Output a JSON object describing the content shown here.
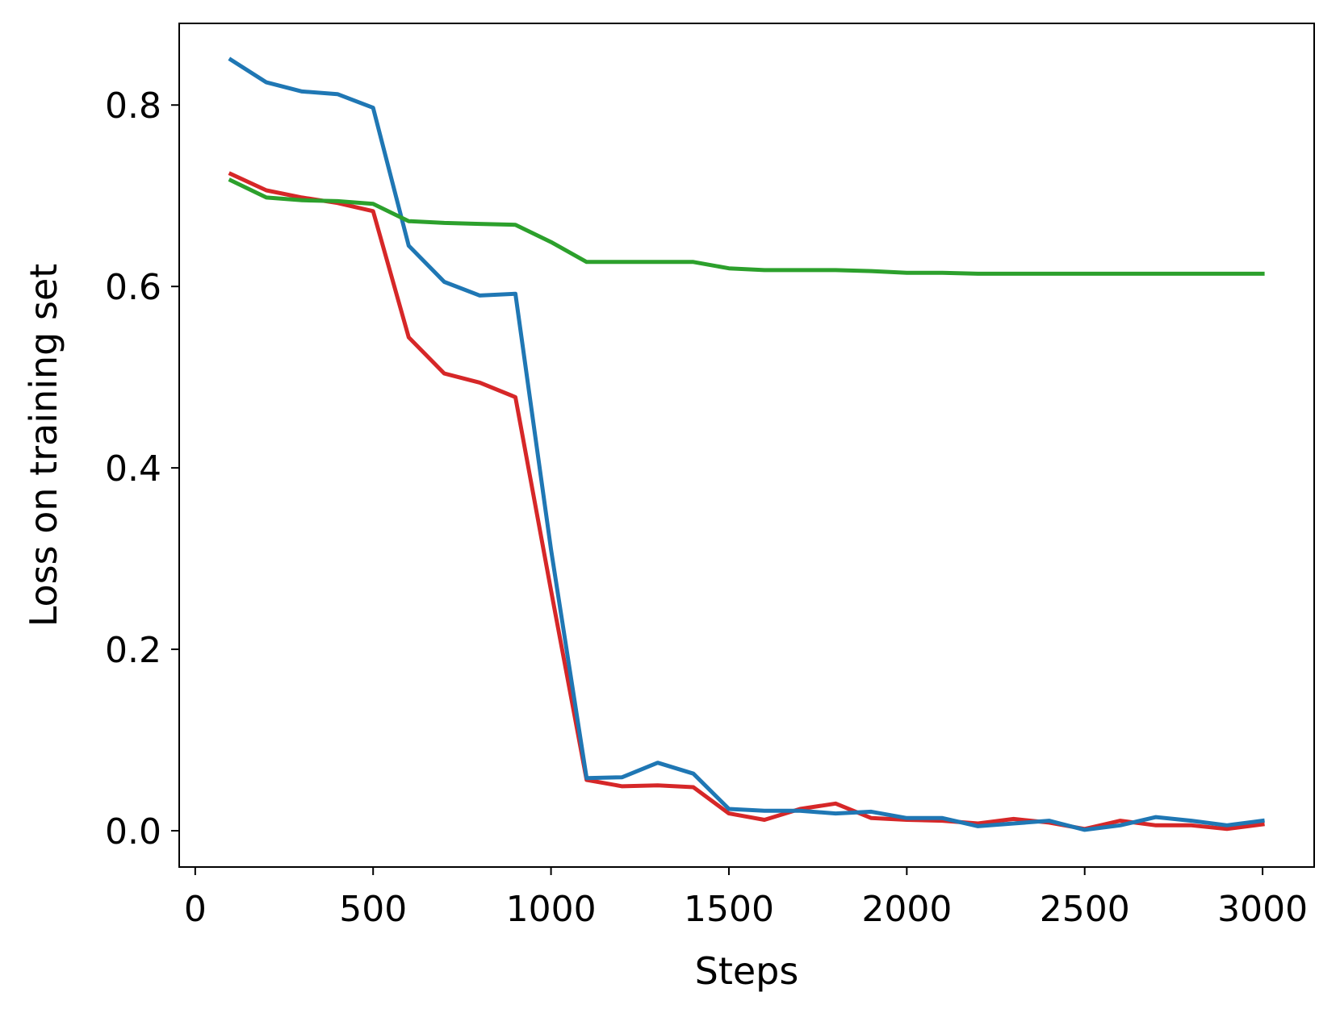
{
  "chart_data": {
    "type": "line",
    "title": "",
    "xlabel": "Steps",
    "ylabel": "Loss on training set",
    "xlim": [
      -45,
      3145
    ],
    "ylim": [
      -0.04,
      0.89
    ],
    "xticks": [
      0,
      500,
      1000,
      1500,
      2000,
      2500,
      3000
    ],
    "xtick_labels": [
      "0",
      "500",
      "1000",
      "1500",
      "2000",
      "2500",
      "3000"
    ],
    "yticks": [
      0.0,
      0.2,
      0.4,
      0.6,
      0.8
    ],
    "ytick_labels": [
      "0.0",
      "0.2",
      "0.4",
      "0.6",
      "0.8"
    ],
    "grid": false,
    "legend": "none",
    "x": [
      100,
      200,
      300,
      400,
      500,
      600,
      700,
      800,
      900,
      1000,
      1100,
      1200,
      1300,
      1400,
      1500,
      1600,
      1700,
      1800,
      1900,
      2000,
      2100,
      2200,
      2300,
      2400,
      2500,
      2600,
      2700,
      2800,
      2900,
      3000
    ],
    "series": [
      {
        "color": "#d62728",
        "values": [
          0.724,
          0.706,
          0.698,
          0.692,
          0.683,
          0.544,
          0.504,
          0.494,
          0.478,
          0.265,
          0.056,
          0.049,
          0.05,
          0.048,
          0.019,
          0.012,
          0.024,
          0.03,
          0.014,
          0.012,
          0.011,
          0.008,
          0.013,
          0.009,
          0.002,
          0.011,
          0.006,
          0.006,
          0.002,
          0.007
        ]
      },
      {
        "color": "#1f77b4",
        "values": [
          0.85,
          0.825,
          0.815,
          0.812,
          0.797,
          0.645,
          0.605,
          0.59,
          0.592,
          0.31,
          0.058,
          0.059,
          0.075,
          0.063,
          0.024,
          0.022,
          0.022,
          0.019,
          0.021,
          0.014,
          0.014,
          0.005,
          0.008,
          0.011,
          0.001,
          0.006,
          0.015,
          0.011,
          0.006,
          0.011
        ]
      },
      {
        "color": "#2ca02c",
        "values": [
          0.717,
          0.698,
          0.695,
          0.694,
          0.691,
          0.672,
          0.67,
          0.669,
          0.668,
          0.649,
          0.627,
          0.627,
          0.627,
          0.627,
          0.62,
          0.618,
          0.618,
          0.618,
          0.617,
          0.615,
          0.615,
          0.614,
          0.614,
          0.614,
          0.614,
          0.614,
          0.614,
          0.614,
          0.614,
          0.614
        ]
      }
    ]
  }
}
